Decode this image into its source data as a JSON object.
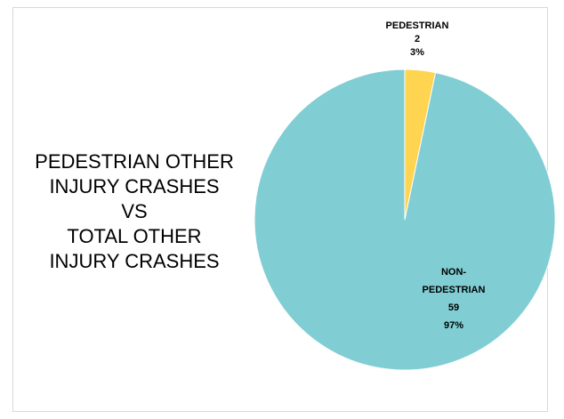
{
  "chart_data": {
    "type": "pie",
    "title_lines": [
      "PEDESTRIAN OTHER",
      "INJURY CRASHES",
      "VS",
      "TOTAL OTHER",
      "INJURY CRASHES"
    ],
    "slices": [
      {
        "label_lines": [
          "PEDESTRIAN"
        ],
        "value": 2,
        "value_label": "2",
        "percent_label": "3%",
        "color": "#ffd451"
      },
      {
        "label_lines": [
          "NON-",
          "PEDESTRIAN"
        ],
        "value": 59,
        "value_label": "59",
        "percent_label": "97%",
        "color": "#80ced3"
      }
    ]
  }
}
